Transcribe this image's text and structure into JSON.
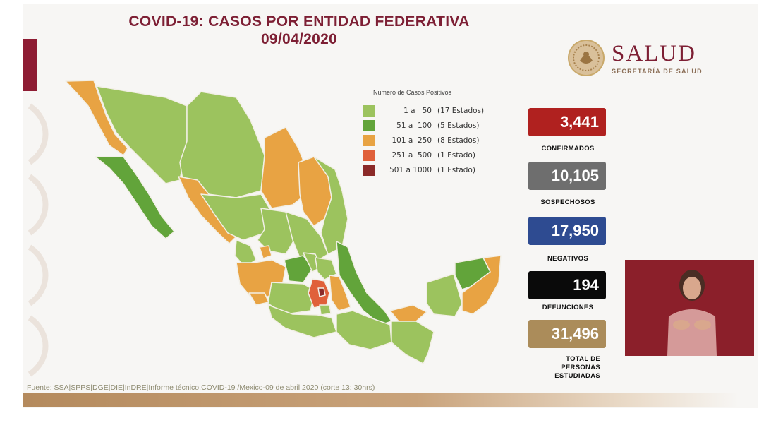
{
  "title": {
    "line1": "COVID-19: CASOS POR ENTIDAD FEDERATIVA",
    "line2": "09/04/2020"
  },
  "logo": {
    "word": "SALUD",
    "subtitle": "SECRETARÍA DE SALUD",
    "seal_icon": "mexico-coat-of-arms-seal"
  },
  "legend": {
    "title": "Numero de Casos Positivos",
    "items": [
      {
        "range": "  1 a   50",
        "states": "(17 Estados)",
        "color": "#9cc35e"
      },
      {
        "range": " 51 a  100",
        "states": "(5 Estados)",
        "color": "#62a43a"
      },
      {
        "range": "101 a  250",
        "states": "(8 Estados)",
        "color": "#e8a343"
      },
      {
        "range": "251 a  500",
        "states": "(1 Estado)",
        "color": "#e0603a"
      },
      {
        "range": "501 a 1000",
        "states": "(1 Estado)",
        "color": "#8b2a28"
      }
    ]
  },
  "stats": [
    {
      "value": "3,441",
      "label": "CONFIRMADOS",
      "color": "#b0211f"
    },
    {
      "value": "10,105",
      "label": "SOSPECHOSOS",
      "color": "#6e6e6e"
    },
    {
      "value": "17,950",
      "label": "NEGATIVOS",
      "color": "#2e4b91"
    },
    {
      "value": "194",
      "label": "DEFUNCIONES",
      "color": "#0a0a0a"
    },
    {
      "value": "31,496",
      "label": "TOTAL DE PERSONAS ESTUDIADAS",
      "label_lines": [
        "TOTAL DE",
        "PERSONAS",
        "ESTUDIADAS"
      ],
      "color": "#ab8c5a"
    }
  ],
  "footer": {
    "source": "Fuente: SSA|SPPS|DGE|DIE|InDRE|Informe técnico.COVID-19 /Mexico-09 de abril 2020 (corte 13: 30hrs)"
  },
  "colors": {
    "brand_maroon": "#7d1f34",
    "interpreter_bg": "#8b1f2a"
  }
}
